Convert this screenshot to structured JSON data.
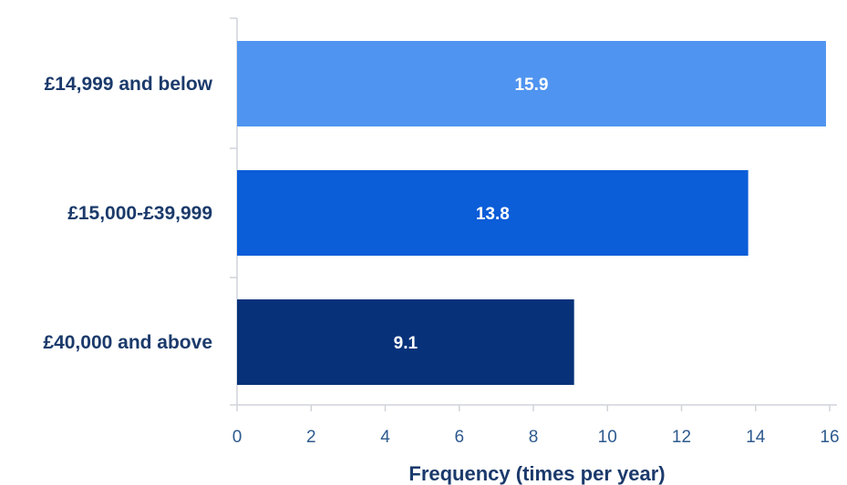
{
  "chart_data": {
    "type": "bar",
    "orientation": "horizontal",
    "categories": [
      "£14,999 and below",
      "£15,000-£39,999",
      "£40,000 and above"
    ],
    "values": [
      15.9,
      13.8,
      9.1
    ],
    "data_labels": [
      "15.9",
      "13.8",
      "9.1"
    ],
    "bar_colors": [
      "#4f94f0",
      "#0b5dd8",
      "#07327a"
    ],
    "title": "",
    "xlabel": "Frequency (times per year)",
    "ylabel": "",
    "xlim": [
      0,
      16
    ],
    "x_ticks": [
      0,
      2,
      4,
      6,
      8,
      10,
      12,
      14,
      16
    ],
    "x_tick_labels": [
      "0",
      "2",
      "4",
      "6",
      "8",
      "10",
      "12",
      "14",
      "16"
    ],
    "grid": false,
    "legend": "none"
  },
  "colors": {
    "label_text": "#1b3a6b",
    "tick_text": "#2d5a8e",
    "axis_line": "#d0d4da",
    "data_label_text": "#ffffff"
  }
}
